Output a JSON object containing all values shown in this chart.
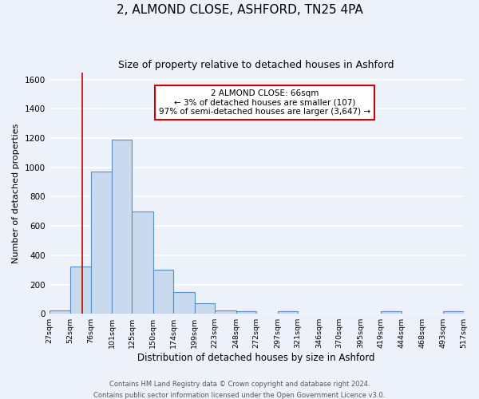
{
  "title": "2, ALMOND CLOSE, ASHFORD, TN25 4PA",
  "subtitle": "Size of property relative to detached houses in Ashford",
  "xlabel": "Distribution of detached houses by size in Ashford",
  "ylabel": "Number of detached properties",
  "bar_edges": [
    27,
    52,
    76,
    101,
    125,
    150,
    174,
    199,
    223,
    248,
    272,
    297,
    321,
    346,
    370,
    395,
    419,
    444,
    468,
    493,
    517
  ],
  "bar_heights": [
    25,
    325,
    970,
    1190,
    700,
    300,
    150,
    70,
    25,
    20,
    0,
    15,
    0,
    0,
    0,
    0,
    20,
    0,
    0,
    20
  ],
  "bar_facecolor": "#c9d9ee",
  "bar_edgecolor": "#5b8ec4",
  "bar_linewidth": 0.8,
  "vline_x": 66,
  "vline_color": "#cc0000",
  "vline_linewidth": 1.2,
  "annotation_text_line1": "2 ALMOND CLOSE: 66sqm",
  "annotation_text_line2": "← 3% of detached houses are smaller (107)",
  "annotation_text_line3": "97% of semi-detached houses are larger (3,647) →",
  "annotation_fontsize": 7.5,
  "annotation_box_edgecolor": "#cc0000",
  "annotation_box_facecolor": "white",
  "ylim": [
    0,
    1650
  ],
  "yticks": [
    0,
    200,
    400,
    600,
    800,
    1000,
    1200,
    1400,
    1600
  ],
  "xtick_labels": [
    "27sqm",
    "52sqm",
    "76sqm",
    "101sqm",
    "125sqm",
    "150sqm",
    "174sqm",
    "199sqm",
    "223sqm",
    "248sqm",
    "272sqm",
    "297sqm",
    "321sqm",
    "346sqm",
    "370sqm",
    "395sqm",
    "419sqm",
    "444sqm",
    "468sqm",
    "493sqm",
    "517sqm"
  ],
  "background_color": "#edf2fa",
  "grid_color": "white",
  "title_fontsize": 11,
  "subtitle_fontsize": 9,
  "xlabel_fontsize": 8.5,
  "ylabel_fontsize": 8,
  "footer_line1": "Contains HM Land Registry data © Crown copyright and database right 2024.",
  "footer_line2": "Contains public sector information licensed under the Open Government Licence v3.0.",
  "footer_fontsize": 6.0
}
